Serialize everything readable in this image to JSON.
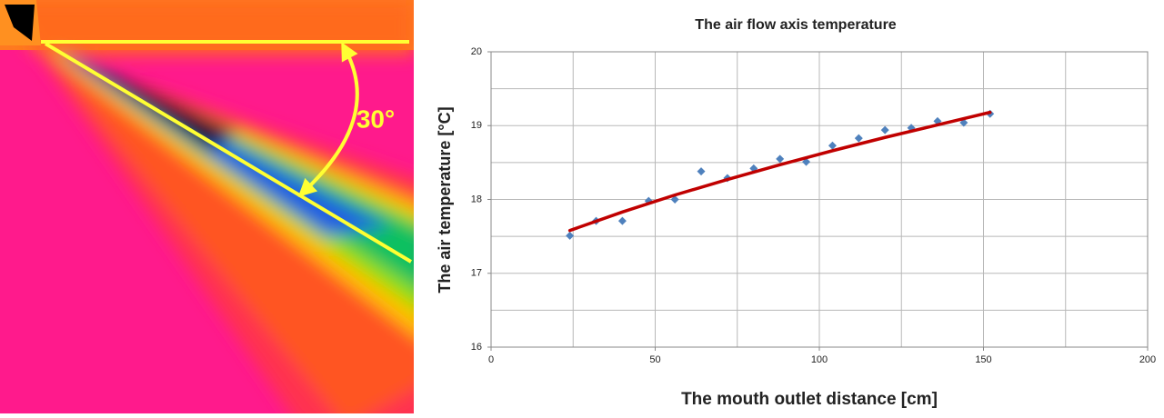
{
  "image_annotation": "30°",
  "chart_data": {
    "type": "scatter",
    "title": "The air flow axis temperature",
    "x_label": "The mouth outlet distance [cm]",
    "y_label": "The air temperature [°C]",
    "xlim": [
      0,
      200
    ],
    "xticks": [
      0,
      50,
      100,
      150,
      200
    ],
    "ylim": [
      16,
      20
    ],
    "yticks": [
      16,
      17,
      18,
      19,
      20
    ],
    "xgrid": [
      0,
      25,
      50,
      75,
      100,
      125,
      150,
      175,
      200
    ],
    "ygrid": [
      16,
      16.5,
      17,
      17.5,
      18,
      18.5,
      19,
      19.5,
      20
    ],
    "grid": true,
    "series": [
      {
        "type": "scatter",
        "color": "#4f81bd",
        "x": [
          24,
          32,
          40,
          48,
          56,
          64,
          72,
          80,
          88,
          96,
          104,
          112,
          120,
          128,
          136,
          144,
          152
        ],
        "values": [
          17.51,
          17.71,
          17.71,
          17.98,
          18.0,
          18.38,
          18.29,
          18.42,
          18.55,
          18.51,
          18.73,
          18.83,
          18.94,
          18.97,
          19.06,
          19.04,
          19.16
        ]
      },
      {
        "type": "line",
        "color": "#c00000",
        "x": [
          24,
          40,
          56,
          72,
          88,
          104,
          120,
          136,
          152
        ],
        "values": [
          17.58,
          17.83,
          18.06,
          18.27,
          18.47,
          18.66,
          18.84,
          19.01,
          19.18
        ]
      }
    ]
  }
}
